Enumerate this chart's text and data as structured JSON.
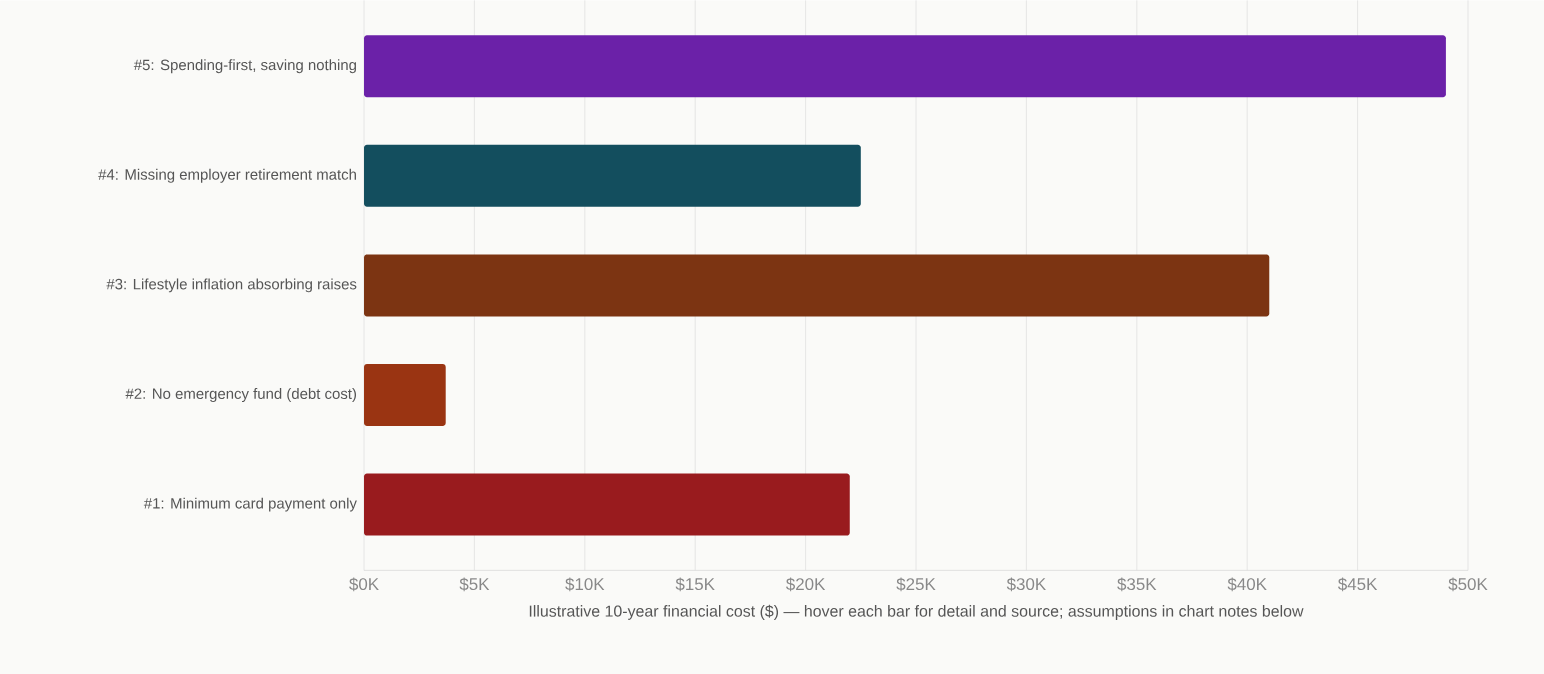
{
  "chart_data": {
    "type": "bar",
    "orientation": "horizontal",
    "xlabel": "Illustrative 10-year financial cost ($) — hover each bar for detail and source; assumptions in chart notes below",
    "categories": [
      "#5: Spending-first, saving nothing",
      "#4: Missing employer retirement match",
      "#3: Lifestyle inflation absorbing raises",
      "#2: No emergency fund (debt cost)",
      "#1: Minimum card payment only"
    ],
    "values": [
      49.0,
      22.5,
      41.0,
      3.7,
      22.0
    ],
    "colors": [
      "#6b21a8",
      "#134e5e",
      "#7c3412",
      "#9a3412",
      "#991b1e"
    ],
    "xlim": [
      0,
      50
    ],
    "xticks": [
      {
        "value": 0,
        "label": "$0K"
      },
      {
        "value": 5,
        "label": "$5K"
      },
      {
        "value": 10,
        "label": "$10K"
      },
      {
        "value": 15,
        "label": "$15K"
      },
      {
        "value": 20,
        "label": "$20K"
      },
      {
        "value": 25,
        "label": "$25K"
      },
      {
        "value": 30,
        "label": "$30K"
      },
      {
        "value": 35,
        "label": "$35K"
      },
      {
        "value": 40,
        "label": "$40K"
      },
      {
        "value": 45,
        "label": "$45K"
      },
      {
        "value": 50,
        "label": "$50K"
      }
    ],
    "grid": "x"
  }
}
